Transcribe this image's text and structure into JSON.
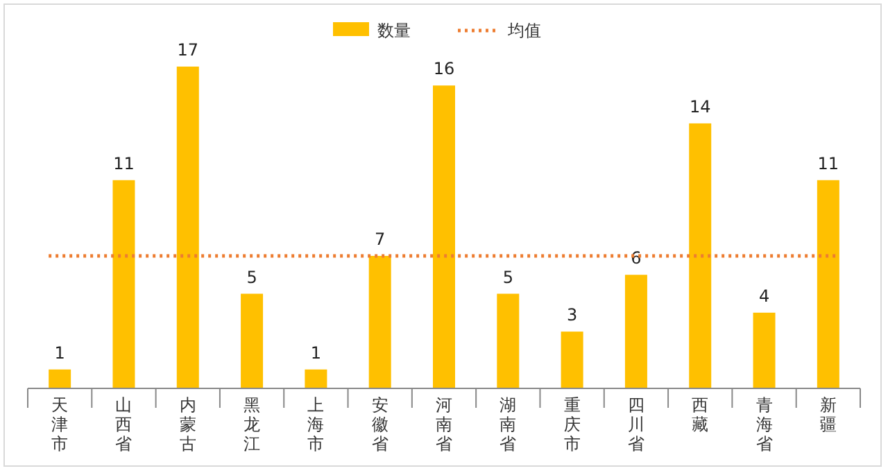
{
  "chart_data": {
    "type": "bar",
    "categories": [
      "天津市",
      "山西省",
      "内蒙古",
      "黑龙江",
      "上海市",
      "安徽省",
      "河南省",
      "湖南省",
      "重庆市",
      "四川省",
      "西藏",
      "青海省",
      "新疆"
    ],
    "series": [
      {
        "name": "数量",
        "color": "#ffc000",
        "values": [
          1,
          11,
          17,
          5,
          1,
          7,
          16,
          5,
          3,
          6,
          14,
          4,
          11
        ]
      }
    ],
    "data_labels": true,
    "legend": "top",
    "ref_lines": [
      {
        "axis": "y",
        "value": 7,
        "label": "均值",
        "color": "#ed7d31",
        "line_style": "dotted"
      }
    ]
  }
}
